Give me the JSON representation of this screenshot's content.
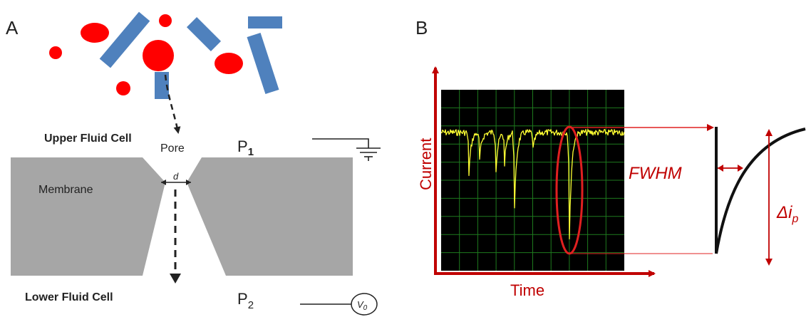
{
  "panels": {
    "a": {
      "letter": "A",
      "upper_cell": "Upper Fluid Cell",
      "lower_cell": "Lower Fluid Cell",
      "pore": "Pore",
      "membrane": "Membrane",
      "diameter": "d",
      "p1_base": "P",
      "p1_sub": "1",
      "p2_base": "P",
      "p2_sub": "2",
      "voltage_base": "V",
      "voltage_sub": "0"
    },
    "b": {
      "letter": "B",
      "ylabel": "Current",
      "xlabel": "Time",
      "fwhm": "FWHM",
      "delta_base": "Δi",
      "delta_sub": "p"
    }
  },
  "colors": {
    "particle_sphere": "#ff0000",
    "particle_rod": "#4f81bd",
    "membrane": "#a6a6a6",
    "accent": "#c00000",
    "scope_bg": "#000000",
    "scope_grid": "#1e7a1e",
    "trace": "#ffff33"
  },
  "icons": [
    "ground-icon",
    "voltage-source-icon"
  ]
}
